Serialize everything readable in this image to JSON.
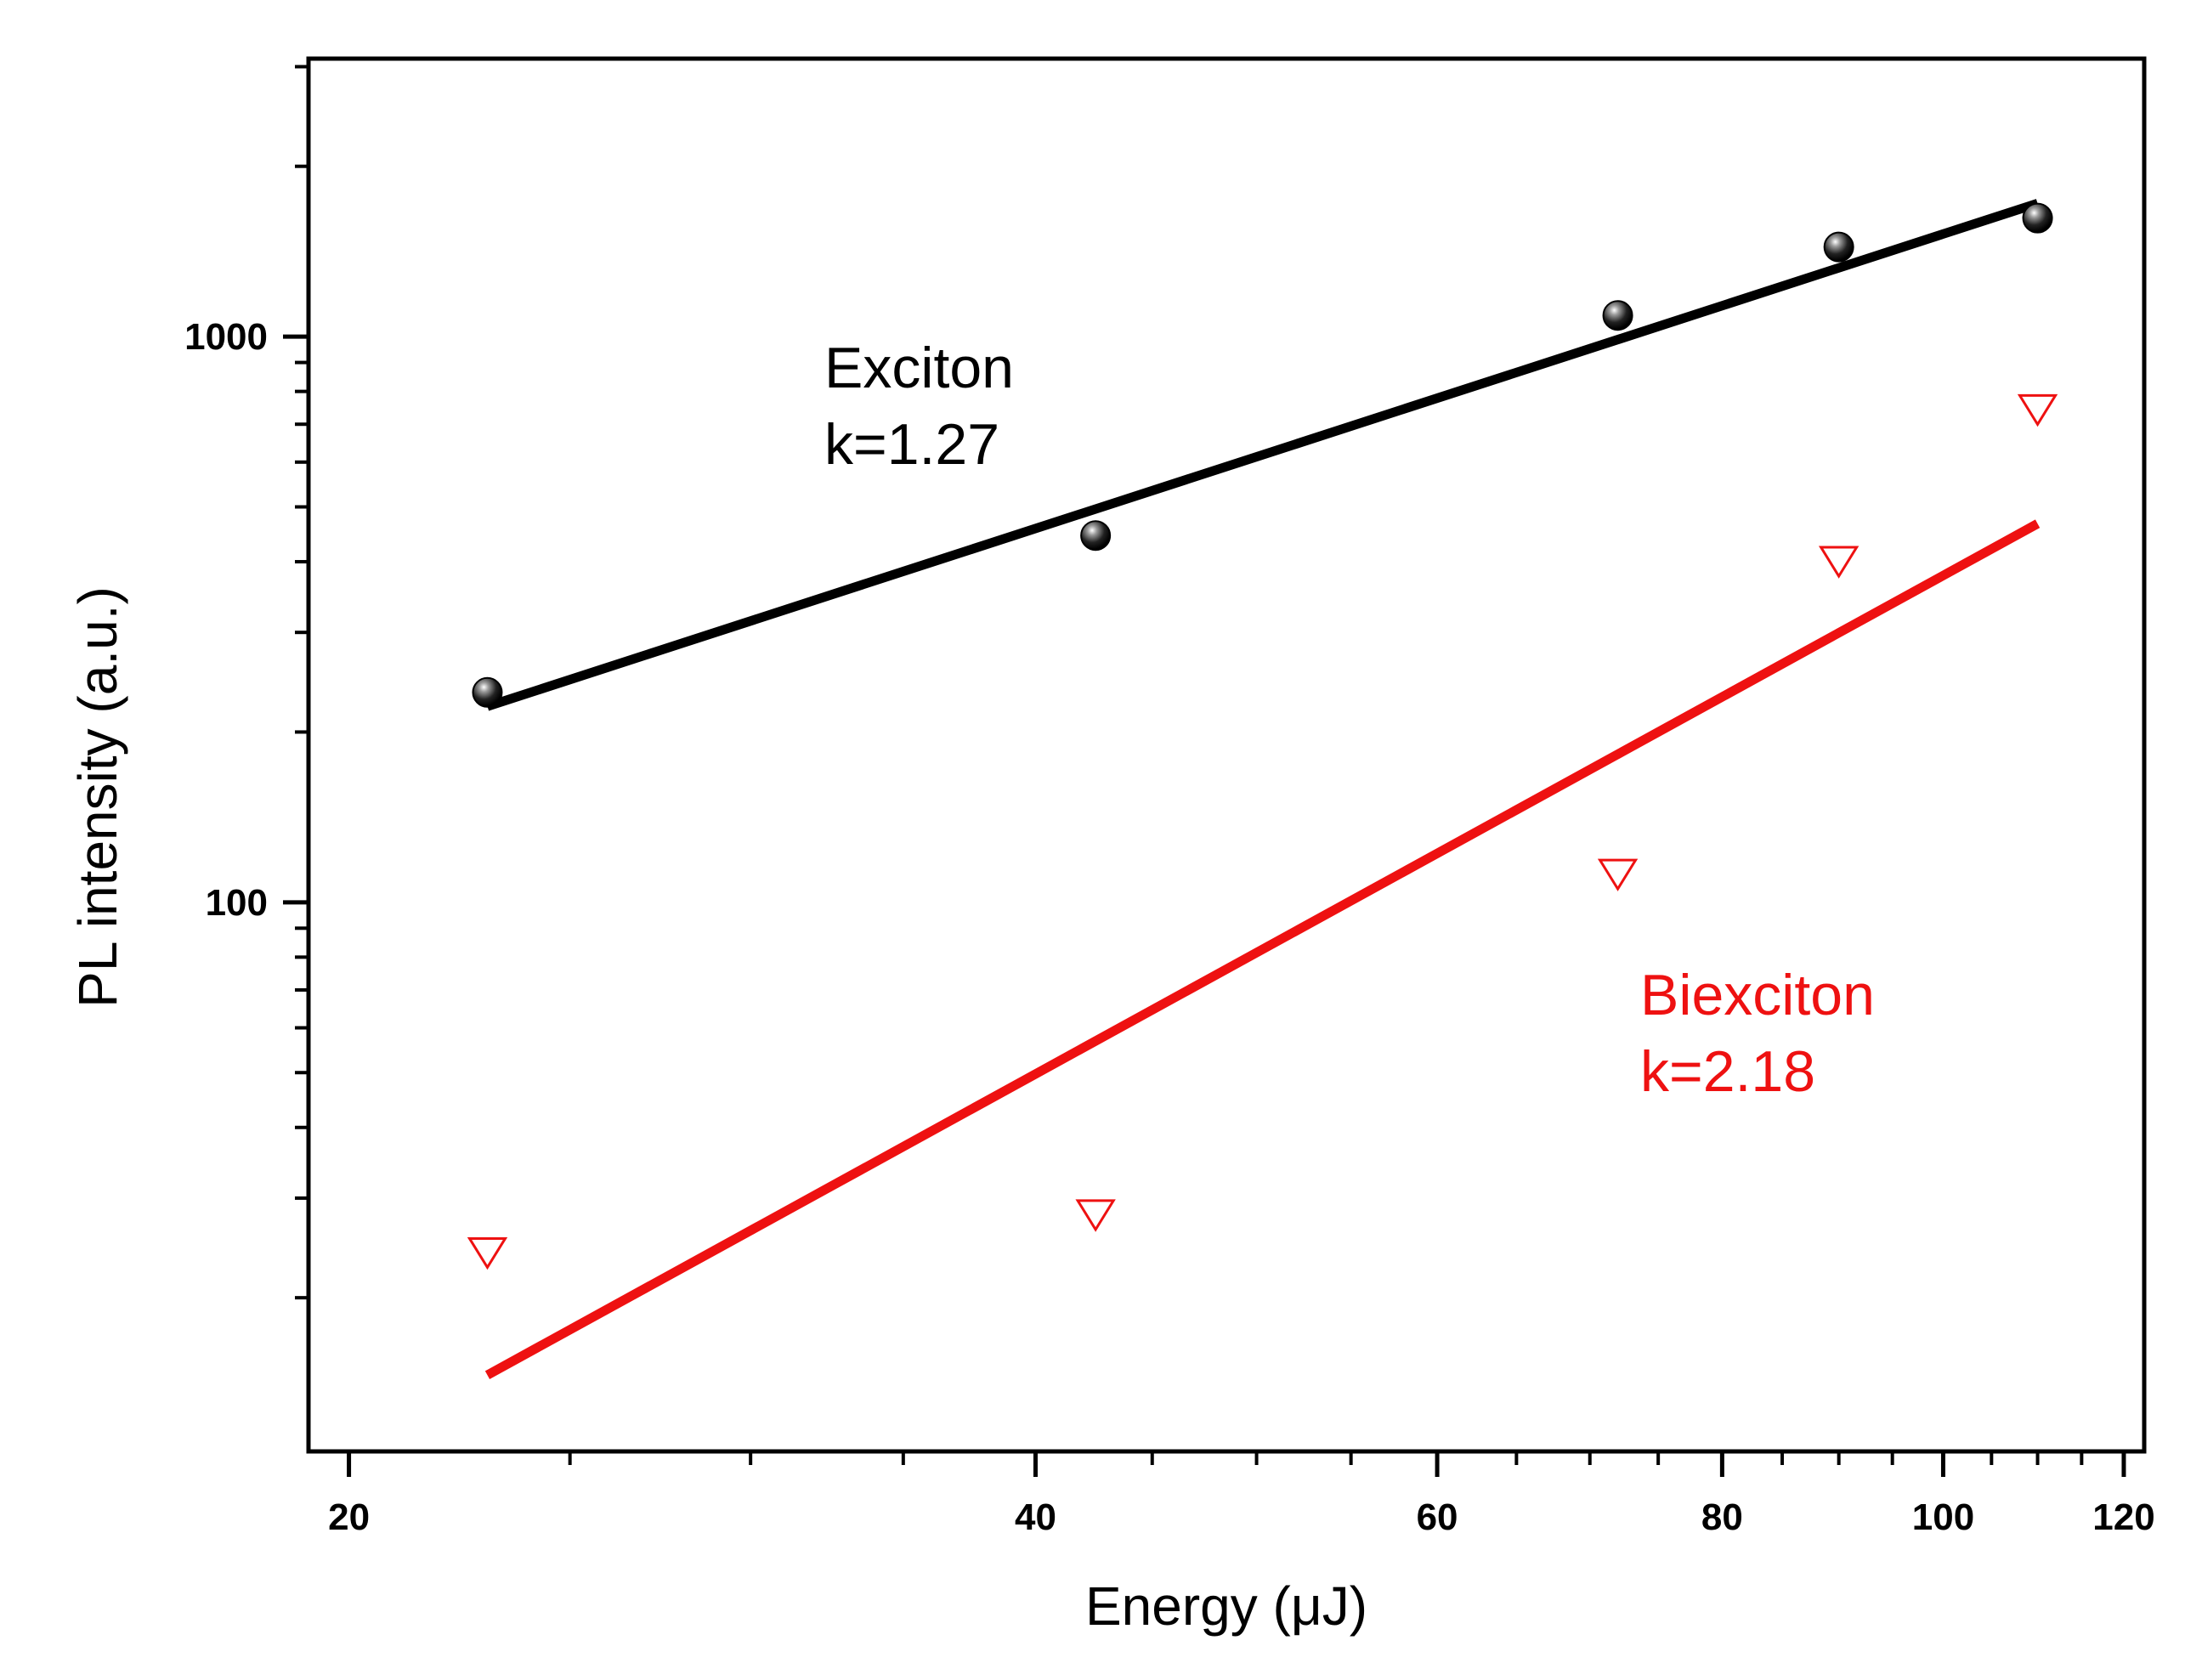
{
  "chart_data": {
    "type": "scatter",
    "title": "",
    "xlabel": "Energy (μJ)",
    "ylabel": "PL intensity (a.u.)",
    "xscale": "log",
    "yscale": "log",
    "xlim": [
      19.2,
      122.5
    ],
    "ylim": [
      10.7,
      3100
    ],
    "x_ticks": [
      20,
      40,
      60,
      80,
      100,
      120
    ],
    "x_tick_labels": [
      "20",
      "40",
      "60",
      "80",
      "100",
      "120"
    ],
    "y_ticks": [
      100,
      1000
    ],
    "y_tick_labels": [
      "100",
      "1000"
    ],
    "series": [
      {
        "name": "Exciton",
        "marker": "sphere",
        "color": "#000000",
        "x": [
          23,
          42.5,
          72,
          90,
          110
        ],
        "y": [
          235,
          445,
          1090,
          1440,
          1620
        ]
      },
      {
        "name": "Biexciton",
        "marker": "triangle-down-open",
        "color": "#ee1111",
        "x": [
          23,
          42.5,
          72,
          90,
          110
        ],
        "y": [
          24,
          28,
          112,
          400,
          742
        ]
      }
    ],
    "fits": [
      {
        "name": "Exciton fit",
        "color": "#000000",
        "x": [
          23,
          110
        ],
        "y": [
          222,
          1720
        ]
      },
      {
        "name": "Biexciton fit",
        "color": "#ee1111",
        "x": [
          23,
          110
        ],
        "y": [
          14.6,
          467
        ]
      }
    ],
    "annotations": [
      {
        "series": "Exciton",
        "lines": [
          "Exciton",
          "k=1.27"
        ],
        "color": "#000000"
      },
      {
        "series": "Biexciton",
        "lines": [
          "Biexciton",
          "k=2.18"
        ],
        "color": "#ee1111"
      }
    ]
  }
}
